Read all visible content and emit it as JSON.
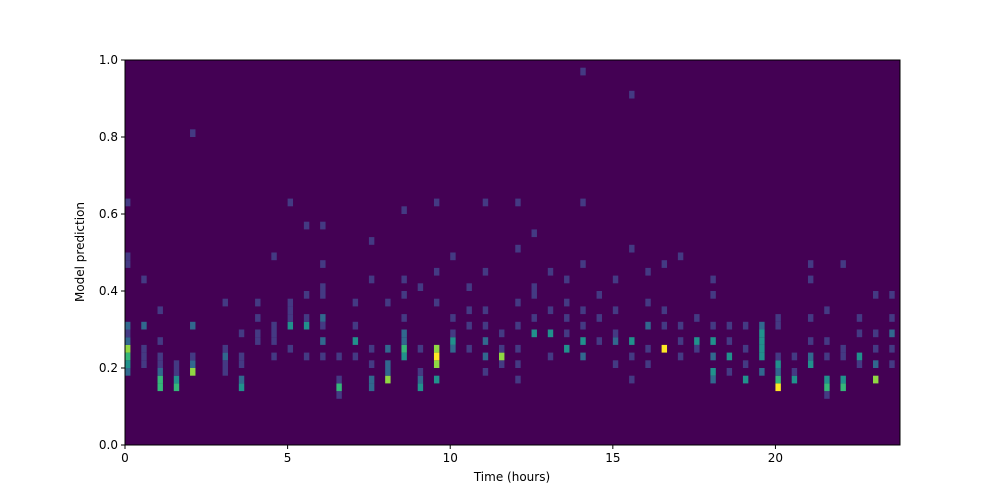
{
  "chart_data": {
    "type": "hist2d",
    "xlabel": "Time (hours)",
    "ylabel": "Model prediction",
    "xlim": [
      0,
      23.83
    ],
    "ylim": [
      0,
      1
    ],
    "xticks": [
      0,
      5,
      10,
      15,
      20
    ],
    "yticks": [
      {
        "value": 0,
        "label": "0.0"
      },
      {
        "value": 0.2,
        "label": "0.2"
      },
      {
        "value": 0.4,
        "label": "0.4"
      },
      {
        "value": 0.6,
        "label": "0.6"
      },
      {
        "value": 0.8,
        "label": "0.8"
      },
      {
        "value": 1,
        "label": "1.0"
      }
    ],
    "xbin_width": 0.1667,
    "ybin_height": 0.02,
    "vmin": 0,
    "vmax": 6,
    "colors": [
      "#440154",
      "#443a83",
      "#31688e",
      "#21918c",
      "#35b779",
      "#90d743",
      "#fde725"
    ],
    "columns": [
      {
        "x": 0,
        "y": [
          0.18,
          0.2,
          0.22,
          0.24,
          0.26,
          0.28,
          0.3,
          0.46,
          0.48,
          0.62
        ],
        "values": [
          2,
          3,
          4,
          5,
          2,
          1,
          2,
          1,
          1,
          1
        ]
      },
      {
        "x": 0.5,
        "y": [
          0.2,
          0.22,
          0.24,
          0.3,
          0.42
        ],
        "values": [
          1,
          1,
          1,
          2,
          1
        ]
      },
      {
        "x": 1,
        "y": [
          0.14,
          0.16,
          0.18,
          0.2,
          0.22,
          0.26,
          0.34
        ],
        "values": [
          4,
          4,
          2,
          1,
          1,
          1,
          1
        ]
      },
      {
        "x": 1.5,
        "y": [
          0.14,
          0.16,
          0.18,
          0.2
        ],
        "values": [
          4,
          3,
          1,
          1
        ]
      },
      {
        "x": 2,
        "y": [
          0.18,
          0.2,
          0.22,
          0.3,
          0.8
        ],
        "values": [
          5,
          2,
          1,
          2,
          1
        ]
      },
      {
        "x": 3,
        "y": [
          0.18,
          0.2,
          0.22,
          0.24,
          0.36
        ],
        "values": [
          1,
          1,
          2,
          1,
          1
        ]
      },
      {
        "x": 3.5,
        "y": [
          0.14,
          0.16,
          0.2,
          0.22,
          0.28
        ],
        "values": [
          3,
          2,
          1,
          1,
          1
        ]
      },
      {
        "x": 4,
        "y": [
          0.26,
          0.28,
          0.32,
          0.36
        ],
        "values": [
          1,
          1,
          1,
          1
        ]
      },
      {
        "x": 4.5,
        "y": [
          0.22,
          0.26,
          0.28,
          0.3,
          0.48
        ],
        "values": [
          1,
          1,
          1,
          1,
          1
        ]
      },
      {
        "x": 5,
        "y": [
          0.24,
          0.3,
          0.32,
          0.34,
          0.36,
          0.62
        ],
        "values": [
          1,
          3,
          1,
          1,
          1,
          1
        ]
      },
      {
        "x": 5.5,
        "y": [
          0.22,
          0.3,
          0.32,
          0.38,
          0.56
        ],
        "values": [
          1,
          3,
          1,
          1,
          1
        ]
      },
      {
        "x": 6,
        "y": [
          0.22,
          0.26,
          0.3,
          0.32,
          0.38,
          0.4,
          0.46,
          0.56
        ],
        "values": [
          1,
          2,
          1,
          2,
          1,
          1,
          1,
          1
        ]
      },
      {
        "x": 6.5,
        "y": [
          0.12,
          0.14,
          0.16,
          0.22
        ],
        "values": [
          1,
          4,
          1,
          1
        ]
      },
      {
        "x": 7,
        "y": [
          0.22,
          0.26,
          0.3,
          0.36
        ],
        "values": [
          1,
          3,
          1,
          1
        ]
      },
      {
        "x": 7.5,
        "y": [
          0.14,
          0.16,
          0.2,
          0.24,
          0.42,
          0.52
        ],
        "values": [
          2,
          2,
          1,
          1,
          1,
          1
        ]
      },
      {
        "x": 8,
        "y": [
          0.16,
          0.18,
          0.2,
          0.24,
          0.36
        ],
        "values": [
          5,
          2,
          2,
          2,
          1
        ]
      },
      {
        "x": 8.5,
        "y": [
          0.22,
          0.24,
          0.26,
          0.28,
          0.32,
          0.38,
          0.42,
          0.6
        ],
        "values": [
          3,
          4,
          2,
          2,
          1,
          1,
          1,
          1
        ]
      },
      {
        "x": 9,
        "y": [
          0.14,
          0.16,
          0.18,
          0.24,
          0.4
        ],
        "values": [
          3,
          2,
          1,
          1,
          1
        ]
      },
      {
        "x": 9.5,
        "y": [
          0.16,
          0.2,
          0.22,
          0.24,
          0.36,
          0.44,
          0.62
        ],
        "values": [
          3,
          5,
          6,
          5,
          1,
          1,
          1
        ]
      },
      {
        "x": 10,
        "y": [
          0.24,
          0.26,
          0.28,
          0.32,
          0.48
        ],
        "values": [
          2,
          3,
          1,
          1,
          1
        ]
      },
      {
        "x": 10.5,
        "y": [
          0.24,
          0.3,
          0.34,
          0.4
        ],
        "values": [
          1,
          1,
          1,
          1
        ]
      },
      {
        "x": 11,
        "y": [
          0.18,
          0.22,
          0.26,
          0.3,
          0.34,
          0.44,
          0.62
        ],
        "values": [
          1,
          2,
          2,
          1,
          1,
          1,
          1
        ]
      },
      {
        "x": 11.5,
        "y": [
          0.2,
          0.22,
          0.24,
          0.28
        ],
        "values": [
          1,
          5,
          1,
          1
        ]
      },
      {
        "x": 12,
        "y": [
          0.16,
          0.2,
          0.24,
          0.3,
          0.36,
          0.5,
          0.62
        ],
        "values": [
          1,
          1,
          1,
          1,
          1,
          1,
          1
        ]
      },
      {
        "x": 12.5,
        "y": [
          0.28,
          0.32,
          0.38,
          0.4,
          0.54
        ],
        "values": [
          3,
          1,
          1,
          1,
          1
        ]
      },
      {
        "x": 13,
        "y": [
          0.22,
          0.28,
          0.34,
          0.44
        ],
        "values": [
          1,
          3,
          1,
          1
        ]
      },
      {
        "x": 13.5,
        "y": [
          0.24,
          0.28,
          0.32,
          0.36,
          0.42
        ],
        "values": [
          3,
          1,
          1,
          1,
          1
        ]
      },
      {
        "x": 14,
        "y": [
          0.22,
          0.26,
          0.3,
          0.34,
          0.46,
          0.62,
          0.96
        ],
        "values": [
          2,
          3,
          1,
          1,
          1,
          1,
          1
        ]
      },
      {
        "x": 14.5,
        "y": [
          0.26,
          0.32,
          0.38
        ],
        "values": [
          1,
          1,
          1
        ]
      },
      {
        "x": 15,
        "y": [
          0.2,
          0.26,
          0.28,
          0.34,
          0.42
        ],
        "values": [
          1,
          2,
          1,
          1,
          1
        ]
      },
      {
        "x": 15.5,
        "y": [
          0.16,
          0.22,
          0.26,
          0.5,
          0.9
        ],
        "values": [
          1,
          1,
          3,
          1,
          1
        ]
      },
      {
        "x": 16,
        "y": [
          0.2,
          0.24,
          0.3,
          0.36,
          0.44
        ],
        "values": [
          1,
          1,
          2,
          1,
          1
        ]
      },
      {
        "x": 16.5,
        "y": [
          0.24,
          0.3,
          0.34,
          0.46
        ],
        "values": [
          6,
          1,
          1,
          1
        ]
      },
      {
        "x": 17,
        "y": [
          0.22,
          0.26,
          0.3,
          0.48
        ],
        "values": [
          1,
          1,
          1,
          1
        ]
      },
      {
        "x": 17.5,
        "y": [
          0.24,
          0.26,
          0.32
        ],
        "values": [
          1,
          3,
          1
        ]
      },
      {
        "x": 18,
        "y": [
          0.16,
          0.18,
          0.22,
          0.26,
          0.3,
          0.38,
          0.42
        ],
        "values": [
          2,
          3,
          2,
          3,
          1,
          1,
          1
        ]
      },
      {
        "x": 18.5,
        "y": [
          0.18,
          0.22,
          0.26,
          0.3
        ],
        "values": [
          1,
          3,
          1,
          1
        ]
      },
      {
        "x": 19,
        "y": [
          0.16,
          0.2,
          0.24,
          0.3
        ],
        "values": [
          3,
          1,
          1,
          1
        ]
      },
      {
        "x": 19.5,
        "y": [
          0.18,
          0.22,
          0.24,
          0.26,
          0.28,
          0.3
        ],
        "values": [
          2,
          3,
          3,
          3,
          3,
          2
        ]
      },
      {
        "x": 20,
        "y": [
          0.14,
          0.16,
          0.18,
          0.2,
          0.22,
          0.3,
          0.32
        ],
        "values": [
          6,
          4,
          2,
          3,
          1,
          1,
          1
        ]
      },
      {
        "x": 20.5,
        "y": [
          0.16,
          0.18,
          0.22
        ],
        "values": [
          3,
          1,
          1
        ]
      },
      {
        "x": 21,
        "y": [
          0.2,
          0.22,
          0.26,
          0.32,
          0.42,
          0.46
        ],
        "values": [
          3,
          2,
          1,
          1,
          1,
          1
        ]
      },
      {
        "x": 21.5,
        "y": [
          0.12,
          0.14,
          0.16,
          0.22,
          0.26,
          0.34
        ],
        "values": [
          1,
          4,
          3,
          1,
          1,
          1
        ]
      },
      {
        "x": 22,
        "y": [
          0.14,
          0.16,
          0.22,
          0.24,
          0.46
        ],
        "values": [
          4,
          3,
          1,
          1,
          1
        ]
      },
      {
        "x": 22.5,
        "y": [
          0.2,
          0.22,
          0.28,
          0.32
        ],
        "values": [
          1,
          3,
          1,
          1
        ]
      },
      {
        "x": 23,
        "y": [
          0.16,
          0.2,
          0.24,
          0.28,
          0.38
        ],
        "values": [
          5,
          2,
          1,
          1,
          1
        ]
      },
      {
        "x": 23.5,
        "y": [
          0.2,
          0.24,
          0.28,
          0.32,
          0.38
        ],
        "values": [
          1,
          1,
          2,
          1,
          1
        ]
      }
    ]
  }
}
